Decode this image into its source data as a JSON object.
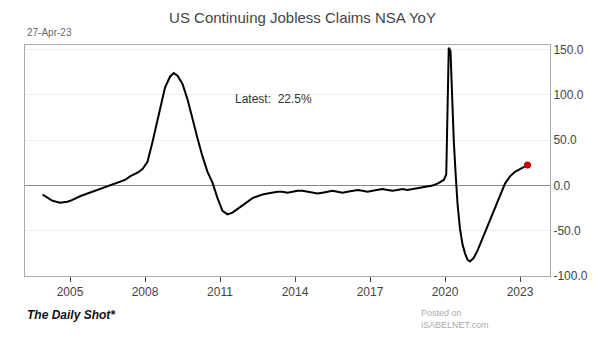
{
  "chart_data": {
    "type": "line",
    "title": "US Continuing Jobless Claims NSA YoY",
    "annotations": [
      "27-Apr-23",
      "Latest:  22.5%",
      "The Daily Shot*",
      "Posted on\niSABELNET.com"
    ],
    "x": [
      2003.9,
      2004.1,
      2004.3,
      2004.6,
      2004.9,
      2005.1,
      2005.4,
      2005.7,
      2005.9,
      2006.2,
      2006.4,
      2006.7,
      2006.9,
      2007.2,
      2007.4,
      2007.7,
      2007.9,
      2008.1,
      2008.3,
      2008.6,
      2008.8,
      2009.0,
      2009.15,
      2009.3,
      2009.5,
      2009.7,
      2009.9,
      2010.1,
      2010.3,
      2010.5,
      2010.7,
      2010.9,
      2011.1,
      2011.3,
      2011.5,
      2011.7,
      2011.9,
      2012.1,
      2012.3,
      2012.5,
      2012.7,
      2012.9,
      2013.1,
      2013.3,
      2013.5,
      2013.7,
      2013.9,
      2014.1,
      2014.3,
      2014.5,
      2014.7,
      2014.9,
      2015.1,
      2015.3,
      2015.5,
      2015.7,
      2015.9,
      2016.1,
      2016.3,
      2016.5,
      2016.7,
      2016.9,
      2017.1,
      2017.3,
      2017.5,
      2017.7,
      2017.9,
      2018.1,
      2018.3,
      2018.5,
      2018.7,
      2018.9,
      2019.1,
      2019.3,
      2019.5,
      2019.7,
      2019.85,
      2019.95,
      2020.05,
      2020.15,
      2020.22,
      2020.28,
      2020.35,
      2020.42,
      2020.5,
      2020.6,
      2020.7,
      2020.8,
      2020.9,
      2021.0,
      2021.15,
      2021.3,
      2021.45,
      2021.6,
      2021.8,
      2022.0,
      2022.2,
      2022.4,
      2022.6,
      2022.8,
      2023.0,
      2023.15,
      2023.3
    ],
    "series": [
      {
        "color": "#000000",
        "values": [
          -10.0,
          -14.0,
          -17.0,
          -19.0,
          -18.0,
          -16.0,
          -12.0,
          -9.0,
          -7.0,
          -4.0,
          -2.0,
          1.0,
          3.0,
          6.0,
          10.0,
          14.0,
          18.0,
          26.0,
          48.0,
          82.0,
          108.0,
          120.0,
          124.0,
          121.0,
          112.0,
          95.0,
          72.0,
          52.0,
          32.0,
          15.0,
          3.0,
          -14.0,
          -28.0,
          -32.0,
          -30.0,
          -26.0,
          -22.0,
          -18.0,
          -14.0,
          -12.0,
          -10.0,
          -9.0,
          -8.0,
          -7.0,
          -7.0,
          -8.0,
          -7.0,
          -6.0,
          -6.0,
          -7.0,
          -8.0,
          -9.0,
          -8.0,
          -7.0,
          -6.0,
          -7.0,
          -8.0,
          -7.0,
          -6.0,
          -5.0,
          -6.0,
          -7.0,
          -6.0,
          -5.0,
          -4.0,
          -5.0,
          -6.0,
          -5.0,
          -4.0,
          -5.0,
          -4.0,
          -3.0,
          -2.0,
          -1.0,
          0.0,
          2.0,
          4.0,
          6.0,
          12.0,
          152.0,
          148.0,
          100.0,
          50.0,
          15.0,
          -20.0,
          -48.0,
          -65.0,
          -75.0,
          -82.0,
          -84.0,
          -80.0,
          -72.0,
          -62.0,
          -50.0,
          -38.0,
          -25.0,
          -12.0,
          2.0,
          10.0,
          15.0,
          18.0,
          20.0,
          22.5
        ]
      }
    ],
    "xlim": [
      2003.2,
      2024.2
    ],
    "xticks": [
      2005,
      2008,
      2011,
      2014,
      2017,
      2020,
      2023
    ],
    "ylim": [
      -100.0,
      155.0
    ],
    "yticks": [
      {
        "value": -100.0,
        "label": "-100.0"
      },
      {
        "value": -50.0,
        "label": "-50.0"
      },
      {
        "value": 0.0,
        "label": "0.0"
      },
      {
        "value": 50.0,
        "label": "50.0"
      },
      {
        "value": 100.0,
        "label": "100.0"
      },
      {
        "value": 150.0,
        "label": "150.0"
      }
    ],
    "grid": true
  }
}
